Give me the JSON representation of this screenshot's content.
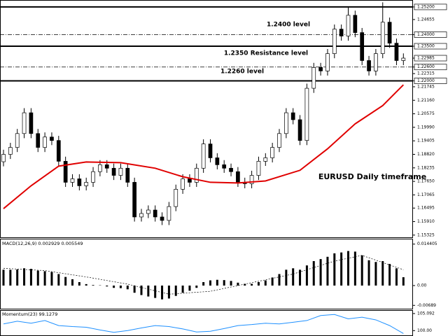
{
  "chart_data": [
    {
      "type": "candlestick",
      "open": [
        1.185,
        1.1882,
        1.1912,
        1.1972,
        1.2062,
        1.1972,
        1.1912,
        1.1957,
        1.1942,
        1.1852,
        1.1761,
        1.1776,
        1.1746,
        1.1761,
        1.1807,
        1.1837,
        1.1822,
        1.1791,
        1.1822,
        1.1761,
        1.1611,
        1.1626,
        1.1641,
        1.1611,
        1.1596,
        1.1656,
        1.1731,
        1.1776,
        1.1761,
        1.1822,
        1.1927,
        1.1867,
        1.1837,
        1.1822,
        1.1807,
        1.1761,
        1.1755,
        1.1791,
        1.1852,
        1.1867,
        1.1912,
        1.1972,
        1.2062,
        1.2032,
        1.1942,
        1.2168,
        1.2258,
        1.2243,
        1.2318,
        1.2424,
        1.2394,
        1.2484,
        1.2409,
        1.2288,
        1.2243,
        1.2318,
        1.2454,
        1.2363,
        1.2288
      ],
      "high": [
        1.1902,
        1.1932,
        1.1992,
        1.2082,
        1.2082,
        1.1992,
        1.1977,
        1.1977,
        1.1962,
        1.1872,
        1.1796,
        1.1796,
        1.1781,
        1.1827,
        1.1857,
        1.1857,
        1.1842,
        1.1842,
        1.1842,
        1.1781,
        1.1646,
        1.1661,
        1.1661,
        1.1631,
        1.1676,
        1.1751,
        1.1796,
        1.1796,
        1.1842,
        1.1947,
        1.1947,
        1.1887,
        1.1857,
        1.1842,
        1.1827,
        1.1781,
        1.1811,
        1.1872,
        1.1887,
        1.1932,
        1.1992,
        1.2082,
        1.2082,
        1.2052,
        1.2188,
        1.2278,
        1.2278,
        1.2338,
        1.2444,
        1.2444,
        1.252,
        1.2504,
        1.2429,
        1.2308,
        1.2338,
        1.254,
        1.2474,
        1.2383,
        1.2319
      ],
      "low": [
        1.183,
        1.1862,
        1.1892,
        1.1952,
        1.1952,
        1.1892,
        1.1892,
        1.1922,
        1.1832,
        1.1741,
        1.1741,
        1.1726,
        1.1726,
        1.1741,
        1.1787,
        1.1802,
        1.1771,
        1.1771,
        1.1741,
        1.1591,
        1.1591,
        1.1606,
        1.1591,
        1.1576,
        1.1576,
        1.1636,
        1.1711,
        1.1741,
        1.1741,
        1.1802,
        1.1847,
        1.1817,
        1.1802,
        1.1787,
        1.1741,
        1.1735,
        1.1735,
        1.1771,
        1.1832,
        1.1847,
        1.1892,
        1.1952,
        1.2012,
        1.1922,
        1.1922,
        1.2148,
        1.2223,
        1.2223,
        1.2298,
        1.2374,
        1.2374,
        1.2389,
        1.2268,
        1.2223,
        1.2223,
        1.2298,
        1.2343,
        1.2268,
        1.2268
      ],
      "close": [
        1.1882,
        1.1912,
        1.1972,
        1.2062,
        1.1972,
        1.1912,
        1.1957,
        1.1942,
        1.1852,
        1.1761,
        1.1776,
        1.1746,
        1.1761,
        1.1807,
        1.1837,
        1.1822,
        1.1791,
        1.1822,
        1.1761,
        1.1611,
        1.1626,
        1.1641,
        1.1611,
        1.1596,
        1.1656,
        1.1731,
        1.1776,
        1.1761,
        1.1822,
        1.1927,
        1.1867,
        1.1837,
        1.1822,
        1.1807,
        1.1761,
        1.1755,
        1.1791,
        1.1852,
        1.1867,
        1.1912,
        1.1972,
        1.2062,
        1.2032,
        1.1942,
        1.2168,
        1.2258,
        1.2243,
        1.2318,
        1.2424,
        1.2394,
        1.2484,
        1.2409,
        1.2288,
        1.2243,
        1.2318,
        1.2454,
        1.2363,
        1.2288,
        1.22985
      ],
      "color_up": "#ffffff",
      "color_down": "#000000",
      "ma": {
        "color": "#e00000",
        "x": [
          0,
          4,
          8,
          12,
          17,
          22,
          26,
          30,
          34,
          38,
          43,
          47,
          51,
          55,
          58
        ],
        "values": [
          1.1647,
          1.1746,
          1.1831,
          1.1849,
          1.1846,
          1.1822,
          1.1785,
          1.1761,
          1.1758,
          1.1767,
          1.1813,
          1.1906,
          1.2014,
          1.2093,
          1.2183
        ]
      },
      "levels": [
        {
          "value": 1.252,
          "style": "solid"
        },
        {
          "value": 1.24,
          "style": "dashdot"
        },
        {
          "value": 1.235,
          "style": "solid"
        },
        {
          "value": 1.226,
          "style": "dashdot"
        },
        {
          "value": 1.22,
          "style": "solid"
        }
      ],
      "annotations": [
        "1.2400 level",
        "1.2350 Resistance level",
        "1.2260 level",
        "EURUSD Daily timeframe"
      ],
      "ylim": [
        1.1526,
        1.2544
      ],
      "yticks": [
        {
          "value": 1.252,
          "label": "1.25200"
        },
        1.24655,
        {
          "value": 1.24,
          "label": "1.24000"
        },
        {
          "value": 1.235,
          "label": "1.23500"
        },
        1.22985,
        {
          "value": 1.226,
          "label": "1.22600"
        },
        1.22315,
        {
          "value": 1.22,
          "label": "1.22000"
        },
        1.21745,
        {
          "value": 1.2116,
          "label": "1.21160"
        },
        1.20575,
        {
          "value": 1.1999,
          "label": "1.19990"
        },
        1.19405,
        {
          "value": 1.1882,
          "label": "1.18820"
        },
        1.18235,
        {
          "value": 1.1765,
          "label": "1.17650"
        },
        1.17065,
        1.16495,
        {
          "value": 1.1591,
          "label": "1.15910"
        },
        1.15325
      ]
    },
    {
      "type": "bar",
      "title": "MACD(12,26,9) 0.002929 0.005549",
      "color": "#000000",
      "values": [
        0.0055,
        0.0055,
        0.0056,
        0.006,
        0.0058,
        0.0052,
        0.005,
        0.0047,
        0.004,
        0.003,
        0.0022,
        0.0012,
        0.0005,
        0.0002,
        0.0001,
        -0.0003,
        -0.0008,
        -0.0009,
        -0.0013,
        -0.0025,
        -0.0033,
        -0.0038,
        -0.0043,
        -0.0048,
        -0.0045,
        -0.0036,
        -0.0025,
        -0.0018,
        -0.0008,
        0.0012,
        0.0018,
        0.002,
        0.0019,
        0.0016,
        0.001,
        0.0006,
        0.0006,
        0.0012,
        0.0018,
        0.0028,
        0.004,
        0.0055,
        0.006,
        0.0055,
        0.007,
        0.0085,
        0.0092,
        0.01,
        0.0112,
        0.0115,
        0.012,
        0.0118,
        0.0105,
        0.0088,
        0.0082,
        0.0085,
        0.0075,
        0.006,
        0.0029
      ],
      "signal": {
        "color": "#000000",
        "x": [
          0,
          6,
          12,
          18,
          24,
          30,
          36,
          42,
          48,
          52,
          58
        ],
        "values": [
          0.006,
          0.0052,
          0.003,
          0.0005,
          -0.003,
          -0.002,
          0.001,
          0.004,
          0.0085,
          0.0105,
          0.0055
        ]
      },
      "ylim": [
        -0.0078,
        0.0158
      ],
      "yticks": [
        0.014405,
        {
          "value": 0,
          "label": "0.00"
        },
        -0.00689
      ]
    },
    {
      "type": "line",
      "title": "Momentum(23) 99.1279",
      "color": "#1e90ff",
      "x": [
        0,
        2,
        4,
        6,
        8,
        10,
        12,
        14,
        16,
        18,
        20,
        22,
        24,
        26,
        28,
        30,
        32,
        34,
        36,
        38,
        40,
        42,
        44,
        46,
        48,
        50,
        52,
        54,
        56,
        58
      ],
      "values": [
        102.0,
        102.8,
        102.2,
        103.0,
        101.5,
        101.2,
        101.0,
        100.2,
        99.5,
        100.0,
        100.8,
        101.5,
        101.2,
        100.5,
        99.6,
        99.8,
        100.6,
        101.5,
        101.8,
        102.2,
        102.0,
        102.5,
        103.0,
        104.5,
        104.8,
        103.5,
        104.0,
        103.2,
        101.5,
        99.1279
      ],
      "ylim": [
        98.6,
        105.7
      ],
      "yticks": [
        105.092,
        {
          "value": 100,
          "label": "100.00"
        }
      ]
    }
  ]
}
